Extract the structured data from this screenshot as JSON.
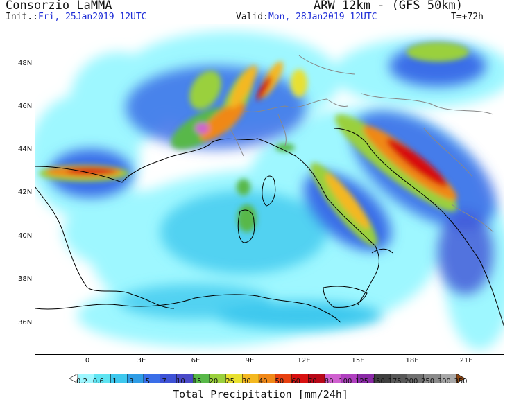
{
  "header": {
    "organization": "Consorzio LaMMA",
    "model": "ARW 12km - (GFS 50km)",
    "init_label": "Init.:",
    "init_value": "Fri, 25Jan2019 12UTC",
    "valid_label": "Valid:",
    "valid_value": "Mon, 28Jan2019 12UTC",
    "step": "T=+72h"
  },
  "map": {
    "lat_labels": [
      "48N",
      "46N",
      "44N",
      "42N",
      "40N",
      "38N",
      "36N"
    ],
    "lon_labels": [
      "0",
      "3E",
      "6E",
      "9E",
      "12E",
      "15E",
      "18E",
      "21E"
    ]
  },
  "colorbar": {
    "title": "Total Precipitation [mm/24h]",
    "labels": [
      "0.2",
      "0.6",
      "1",
      "3",
      "5",
      "7",
      "10",
      "15",
      "20",
      "25",
      "30",
      "40",
      "50",
      "60",
      "70",
      "80",
      "100",
      "125",
      "150",
      "175",
      "200",
      "250",
      "300",
      "350"
    ],
    "colors": [
      "#9ef7ff",
      "#5fe4f2",
      "#3ec8ee",
      "#2f9de6",
      "#3a6ee8",
      "#3e52d6",
      "#4a4ac8",
      "#58b848",
      "#9ad03c",
      "#e8e030",
      "#f4b820",
      "#f08818",
      "#e84010",
      "#d81010",
      "#b80818",
      "#d060d0",
      "#b040c0",
      "#8a2aa6",
      "#404040",
      "#585858",
      "#707070",
      "#8a8a8a",
      "#a8a8a8",
      "#8b4513"
    ]
  }
}
